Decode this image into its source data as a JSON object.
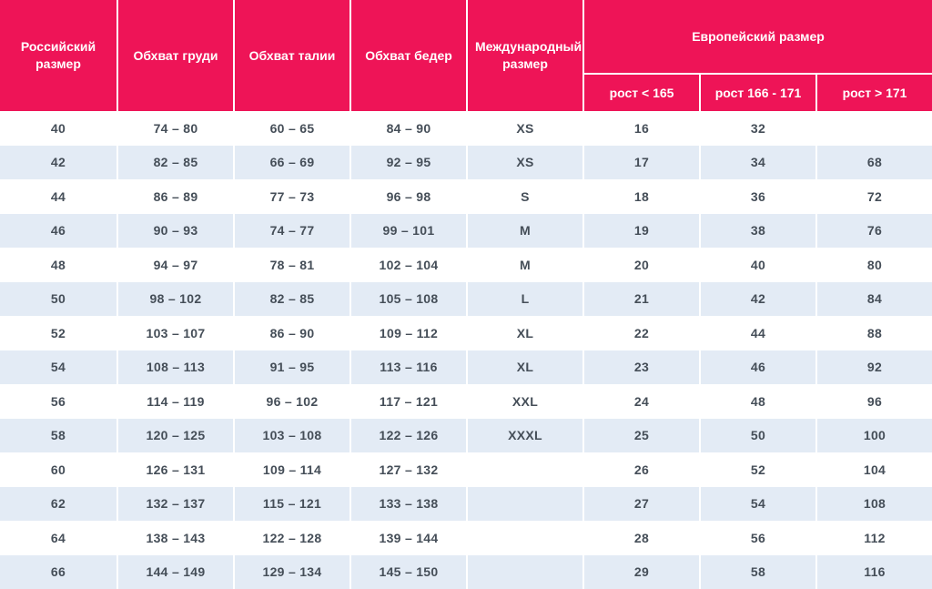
{
  "chart_data": {
    "type": "table",
    "columns": [
      "Российский размер",
      "Обхват груди",
      "Обхват талии",
      "Обхват бедер",
      "Международный размер",
      "Европейский размер: рост < 165",
      "Европейский размер: рост 166 - 171",
      "Европейский размер: рост > 171"
    ],
    "rows": [
      [
        "40",
        "74 – 80",
        "60 – 65",
        "84 – 90",
        "XS",
        "16",
        "32",
        ""
      ],
      [
        "42",
        "82 – 85",
        "66 – 69",
        "92 – 95",
        "XS",
        "17",
        "34",
        "68"
      ],
      [
        "44",
        "86 – 89",
        "77 – 73",
        "96 – 98",
        "S",
        "18",
        "36",
        "72"
      ],
      [
        "46",
        "90 – 93",
        "74 – 77",
        "99 – 101",
        "M",
        "19",
        "38",
        "76"
      ],
      [
        "48",
        "94 – 97",
        "78 – 81",
        "102 – 104",
        "M",
        "20",
        "40",
        "80"
      ],
      [
        "50",
        "98 – 102",
        "82 – 85",
        "105 – 108",
        "L",
        "21",
        "42",
        "84"
      ],
      [
        "52",
        "103 – 107",
        "86 – 90",
        "109 – 112",
        "XL",
        "22",
        "44",
        "88"
      ],
      [
        "54",
        "108 – 113",
        "91 – 95",
        "113 – 116",
        "XL",
        "23",
        "46",
        "92"
      ],
      [
        "56",
        "114 – 119",
        "96 – 102",
        "117 – 121",
        "XXL",
        "24",
        "48",
        "96"
      ],
      [
        "58",
        "120 – 125",
        "103 – 108",
        "122 – 126",
        "XXXL",
        "25",
        "50",
        "100"
      ],
      [
        "60",
        "126 – 131",
        "109 – 114",
        "127 – 132",
        "",
        "26",
        "52",
        "104"
      ],
      [
        "62",
        "132 – 137",
        "115 – 121",
        "133 – 138",
        "",
        "27",
        "54",
        "108"
      ],
      [
        "64",
        "138 – 143",
        "122 – 128",
        "139 – 144",
        "",
        "28",
        "56",
        "112"
      ],
      [
        "66",
        "144 – 149",
        "129 – 134",
        "145 – 150",
        "",
        "29",
        "58",
        "116"
      ]
    ]
  },
  "header": {
    "russian_size": "Российский размер",
    "chest": "Обхват груди",
    "waist": "Обхват талии",
    "hips": "Обхват бедер",
    "international_size": "Международный размер",
    "european_size": "Европейский размер",
    "height_lt_165": "рост < 165",
    "height_166_171": "рост 166 - 171",
    "height_gt_171": "рост > 171"
  },
  "colors": {
    "header_bg": "#EE1457",
    "header_text": "#FFFFFF",
    "stripe_bg": "#E3EBF5",
    "row_bg": "#FFFFFF",
    "body_text": "#454E58",
    "separator": "#FFFFFF"
  }
}
